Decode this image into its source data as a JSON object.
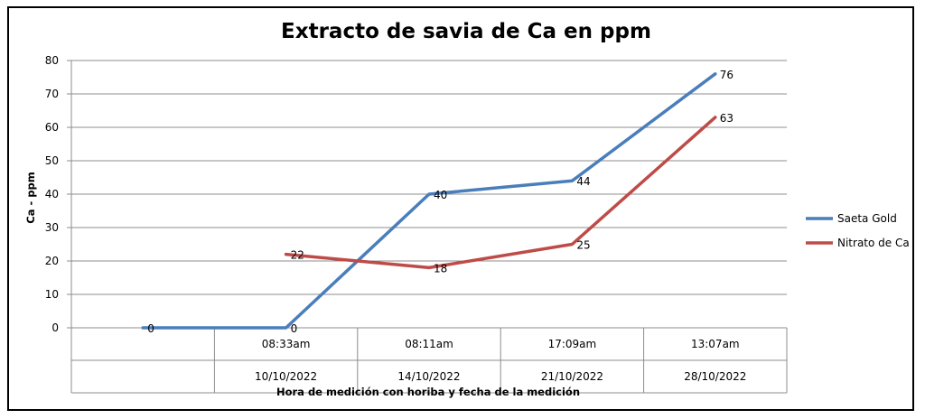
{
  "chart_data": {
    "type": "line",
    "title": "Extracto de savia de Ca en ppm",
    "xlabel": "Hora de medición con horiba  y fecha de la medición",
    "ylabel": "Ca - ppm",
    "ylim": [
      0,
      80
    ],
    "yticks": [
      0,
      10,
      20,
      30,
      40,
      50,
      60,
      70,
      80
    ],
    "categories": [
      {
        "time": "",
        "date": ""
      },
      {
        "time": "08:33am",
        "date": "10/10/2022"
      },
      {
        "time": "08:11am",
        "date": "14/10/2022"
      },
      {
        "time": "17:09am",
        "date": "21/10/2022"
      },
      {
        "time": "13:07am",
        "date": "28/10/2022"
      }
    ],
    "series": [
      {
        "name": "Saeta Gold",
        "color": "#4a7ebb",
        "values": [
          0,
          0,
          40,
          44,
          76
        ],
        "labels": [
          "0",
          "0",
          "40",
          "44",
          "76"
        ]
      },
      {
        "name": "Nitrato de Ca",
        "color": "#be4b48",
        "values": [
          null,
          22,
          18,
          25,
          63
        ],
        "labels": [
          "",
          "22",
          "18",
          "25",
          "63"
        ]
      }
    ],
    "grid": true,
    "legend": "right"
  }
}
